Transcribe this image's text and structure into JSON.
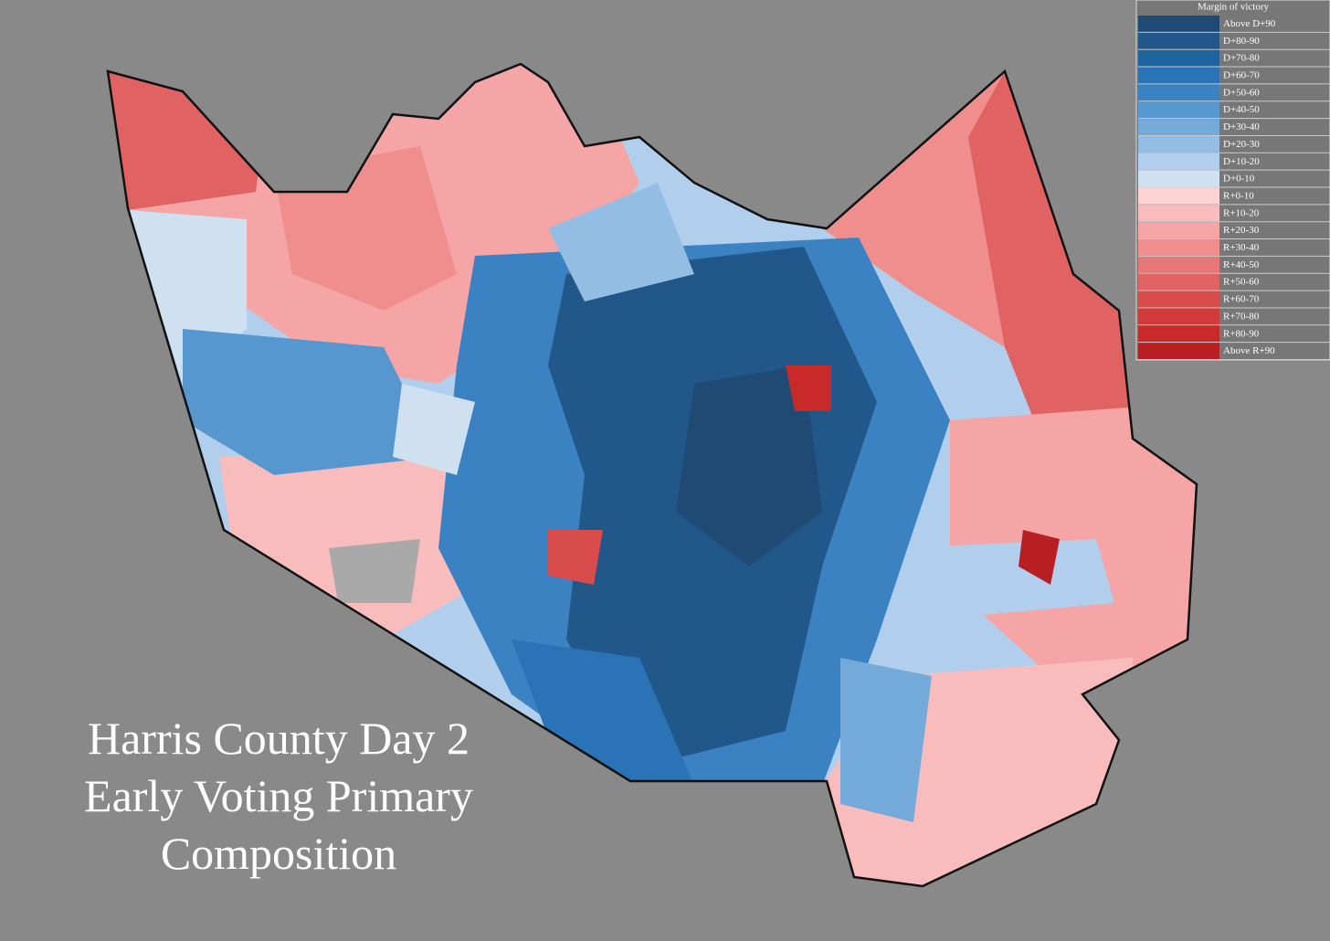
{
  "title": [
    "Harris County Day 2",
    "Early Voting Primary",
    "Composition"
  ],
  "legend": {
    "title": "Margin of victory",
    "items": [
      {
        "label": "Above D+90",
        "color": "#1f4a73"
      },
      {
        "label": "D+80-90",
        "color": "#22578a"
      },
      {
        "label": "D+70-80",
        "color": "#1e64a0"
      },
      {
        "label": "D+60-70",
        "color": "#2a73b6"
      },
      {
        "label": "D+50-60",
        "color": "#3a82c2"
      },
      {
        "label": "D+40-50",
        "color": "#5697cf"
      },
      {
        "label": "D+30-40",
        "color": "#74aad9"
      },
      {
        "label": "D+20-30",
        "color": "#93bde3"
      },
      {
        "label": "D+10-20",
        "color": "#b1cfec"
      },
      {
        "label": "D+0-10",
        "color": "#cfe1f1"
      },
      {
        "label": "R+0-10",
        "color": "#fcd4d4"
      },
      {
        "label": "R+10-20",
        "color": "#f9bcbc"
      },
      {
        "label": "R+20-30",
        "color": "#f5a5a5"
      },
      {
        "label": "R+30-40",
        "color": "#f08e8e"
      },
      {
        "label": "R+40-50",
        "color": "#e87878"
      },
      {
        "label": "R+50-60",
        "color": "#e06262"
      },
      {
        "label": "R+60-70",
        "color": "#d84c4c"
      },
      {
        "label": "R+70-80",
        "color": "#d03a3a"
      },
      {
        "label": "R+80-90",
        "color": "#c82a2a"
      },
      {
        "label": "Above R+90",
        "color": "#b81e22"
      }
    ]
  }
}
